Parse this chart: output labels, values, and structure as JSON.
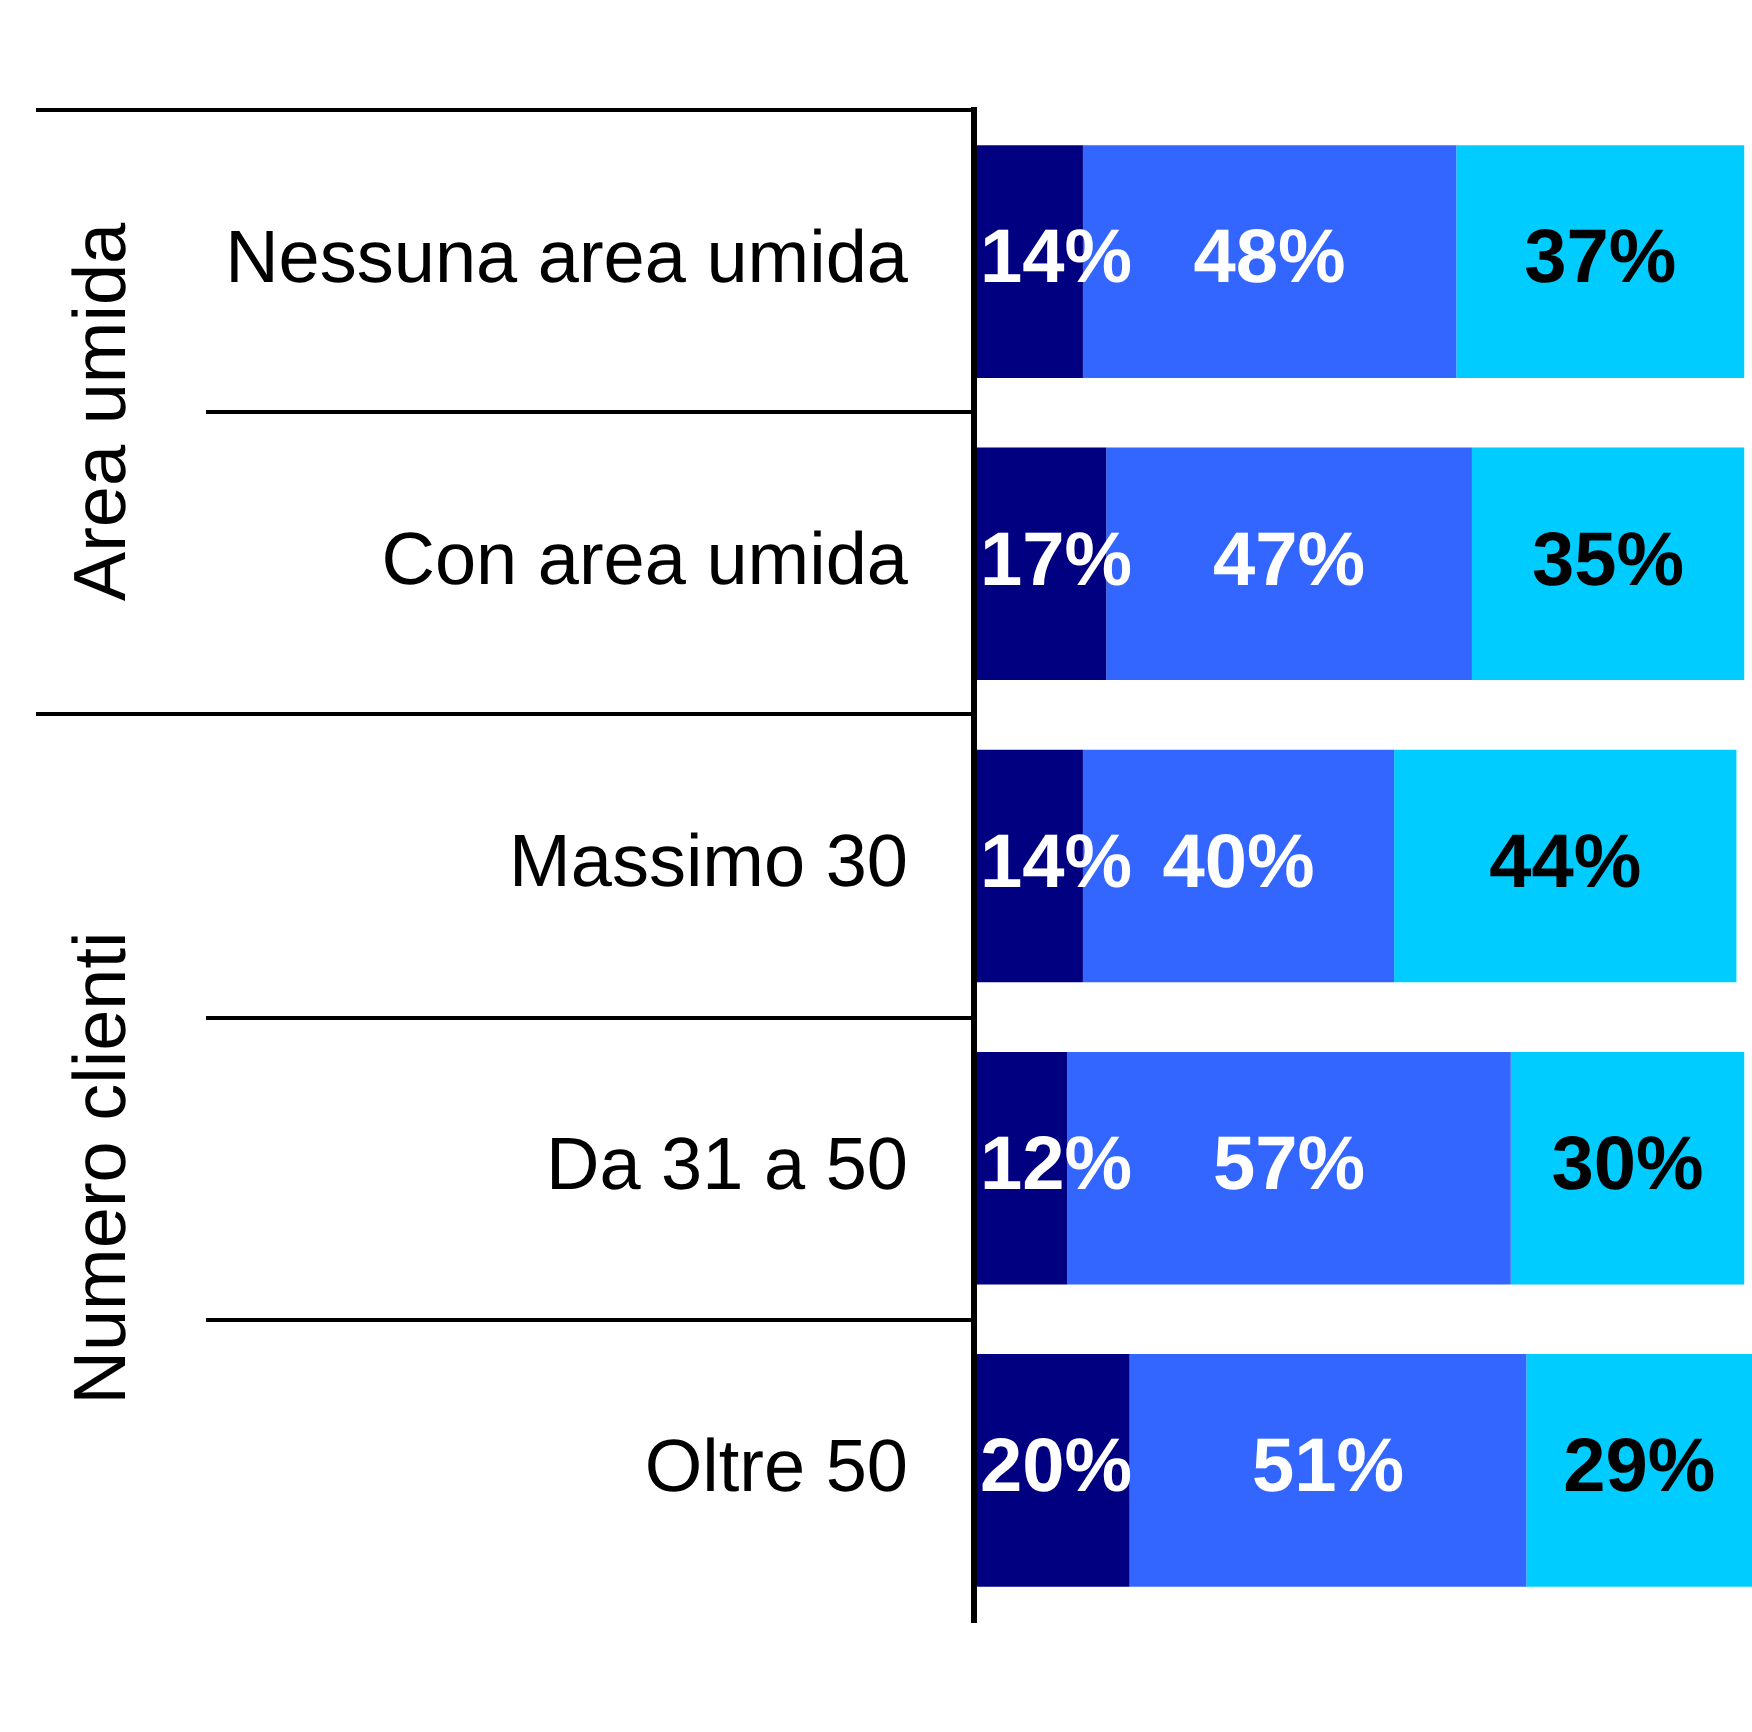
{
  "chart_data": {
    "type": "bar",
    "orientation": "horizontal",
    "stacked": true,
    "categories": [
      "Nessuna area umida",
      "Con area umida",
      "Massimo 30",
      "Da 31 a 50",
      "Oltre 50"
    ],
    "series": [
      {
        "color": "#000080",
        "values": [
          14,
          17,
          14,
          12,
          20
        ],
        "value_labels": [
          "14%",
          "17%",
          "14%",
          "12%",
          "20%"
        ]
      },
      {
        "color": "#3366ff",
        "values": [
          48,
          47,
          40,
          57,
          51
        ],
        "value_labels": [
          "48%",
          "47%",
          "40%",
          "57%",
          "51%"
        ]
      },
      {
        "color": "#00ccff",
        "values": [
          37,
          35,
          44,
          30,
          29
        ],
        "value_labels": [
          "37%",
          "35%",
          "44%",
          "30%",
          "29%"
        ]
      }
    ],
    "annotations": [
      "Area umida",
      "Numero clienti"
    ]
  }
}
